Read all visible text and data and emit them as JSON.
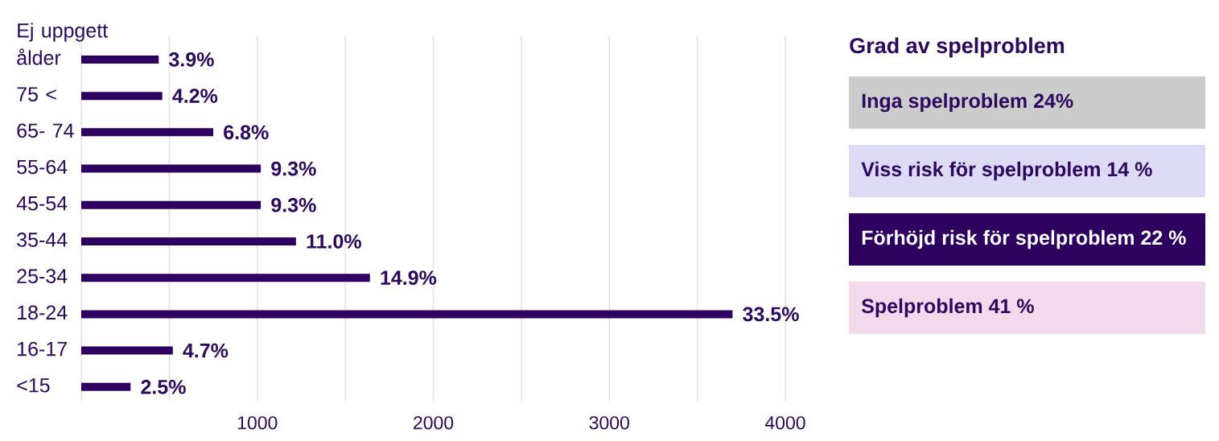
{
  "chart_data": [
    {
      "type": "bar",
      "orientation": "horizontal",
      "categories": [
        "Ej uppgett ålder",
        "75 <",
        "65- 74",
        "55-64",
        "45-54",
        "35-44",
        "25-34",
        "18-24",
        "16-17",
        "<15"
      ],
      "values": [
        440,
        460,
        750,
        1020,
        1020,
        1220,
        1640,
        3700,
        520,
        280
      ],
      "color": "#2e0060",
      "annotations": [
        {
          "text": "3.9%",
          "x": 440,
          "y": "Ej uppgett ålder"
        },
        {
          "text": "4.2%",
          "x": 460,
          "y": "75 <"
        },
        {
          "text": "6.8%",
          "x": 750,
          "y": "65- 74"
        },
        {
          "text": "9.3%",
          "x": 1020,
          "y": "55-64"
        },
        {
          "text": "9.3%",
          "x": 1020,
          "y": "45-54"
        },
        {
          "text": "11.0%",
          "x": 1220,
          "y": "35-44"
        },
        {
          "text": "14.9%",
          "x": 1640,
          "y": "25-34"
        },
        {
          "text": "33.5%",
          "x": 3700,
          "y": "18-24"
        },
        {
          "text": "4.7%",
          "x": 520,
          "y": "16-17"
        },
        {
          "text": "2.5%",
          "x": 280,
          "y": "<15"
        }
      ],
      "xlim": [
        0,
        4000
      ],
      "xticks": [
        {
          "value": 0,
          "label": null
        },
        {
          "value": 500,
          "label": null
        },
        1000,
        {
          "value": 1500,
          "label": null
        },
        2000,
        {
          "value": 2500,
          "label": null
        },
        3000,
        {
          "value": 3500,
          "label": null
        },
        4000
      ],
      "grid": "x"
    },
    {
      "type": "other",
      "title": "Grad av spelproblem",
      "categories": [
        "Inga spelproblem 24%",
        "Viss risk för spelproblem 14 %",
        "Förhöjd risk för spelproblem 22 %",
        "Spelproblem 41 %"
      ],
      "colors": [
        "#cccccc",
        "#dcdaf5",
        "#2e0060",
        "#f3d9ec"
      ]
    }
  ]
}
